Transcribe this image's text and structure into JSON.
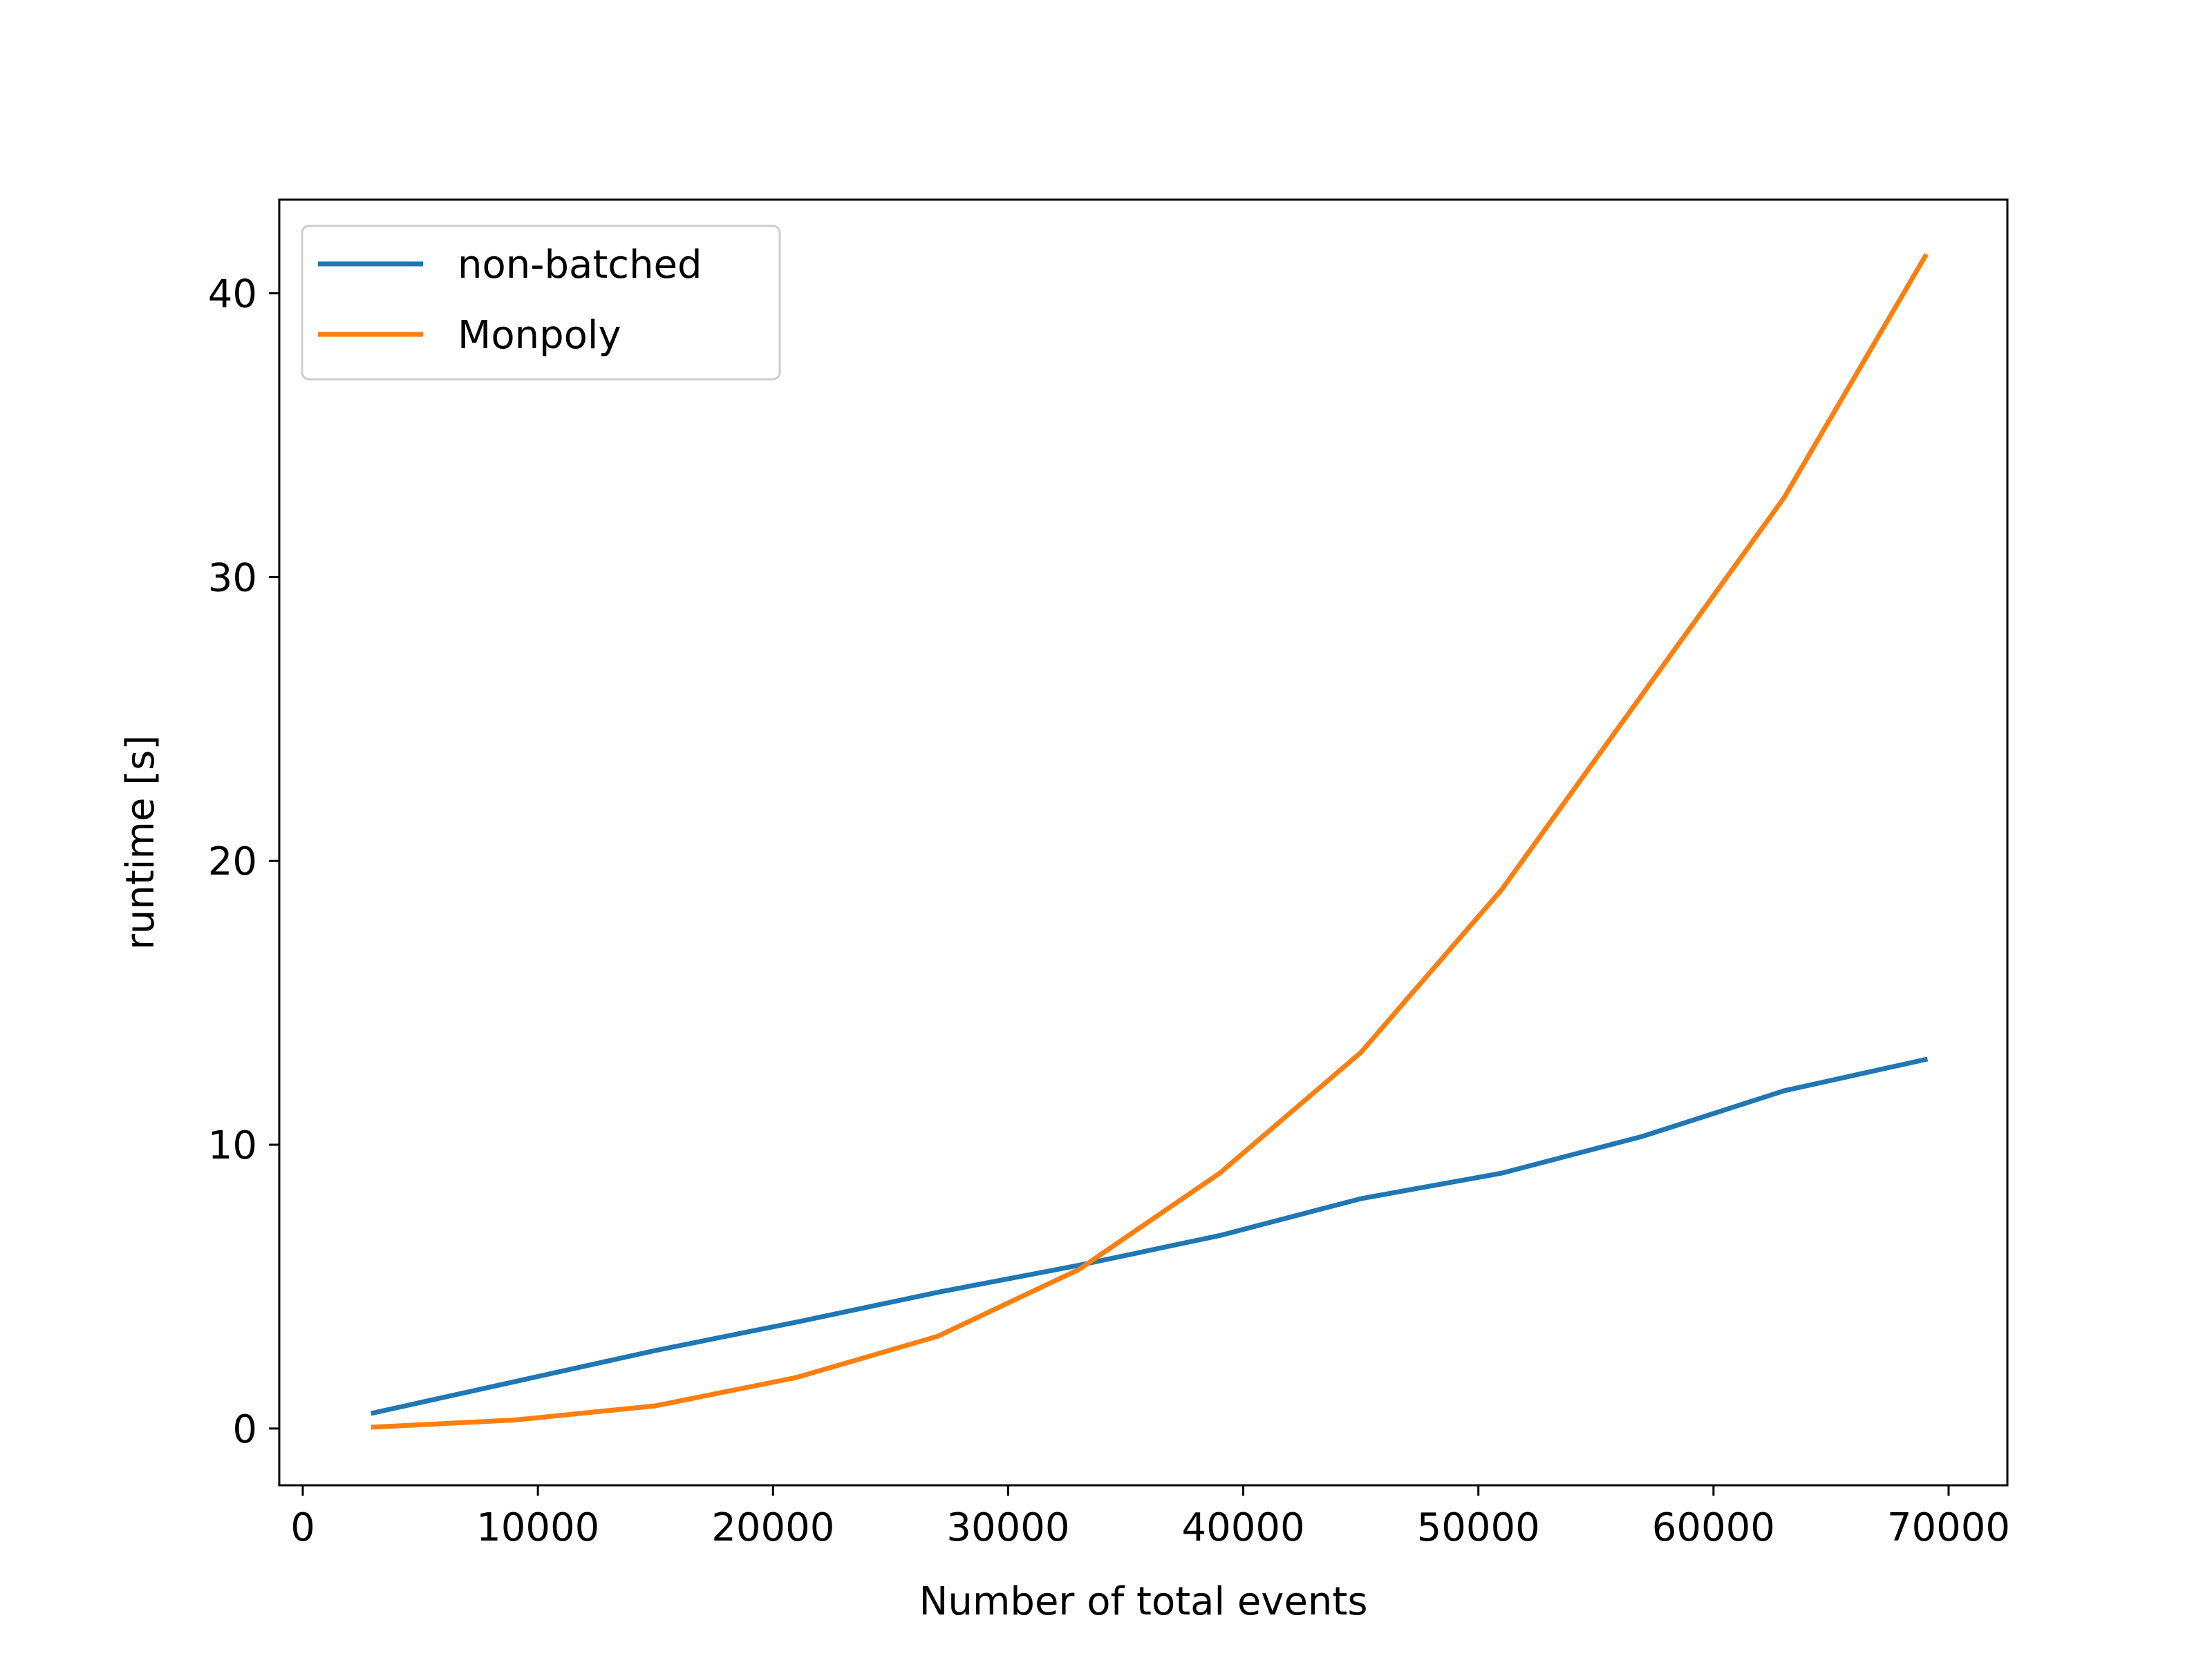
{
  "chart_data": {
    "type": "line",
    "title": "",
    "xlabel": "Number of total events",
    "ylabel": "runtime [s]",
    "xlim": [
      -1000,
      72500
    ],
    "ylim": [
      -2,
      43.3
    ],
    "xticks": [
      0,
      10000,
      20000,
      30000,
      40000,
      50000,
      60000,
      70000
    ],
    "yticks": [
      0,
      10,
      20,
      30,
      40
    ],
    "grid": false,
    "legend_position": "top-left",
    "series": [
      {
        "name": "non-batched",
        "color": "#1f77b4",
        "x": [
          3000,
          9000,
          15000,
          21000,
          27000,
          33000,
          39000,
          45000,
          51000,
          57000,
          63000,
          69000
        ],
        "y": [
          0.55,
          1.65,
          2.75,
          3.75,
          4.8,
          5.75,
          6.8,
          8.1,
          9.0,
          10.3,
          11.9,
          13.0
        ]
      },
      {
        "name": "Monpoly",
        "color": "#ff7f0e",
        "x": [
          3000,
          9000,
          15000,
          21000,
          27000,
          33000,
          39000,
          45000,
          51000,
          57000,
          63000,
          69000
        ],
        "y": [
          0.05,
          0.3,
          0.8,
          1.8,
          3.25,
          5.6,
          9.0,
          13.25,
          19.0,
          25.9,
          32.8,
          41.3
        ]
      }
    ]
  }
}
